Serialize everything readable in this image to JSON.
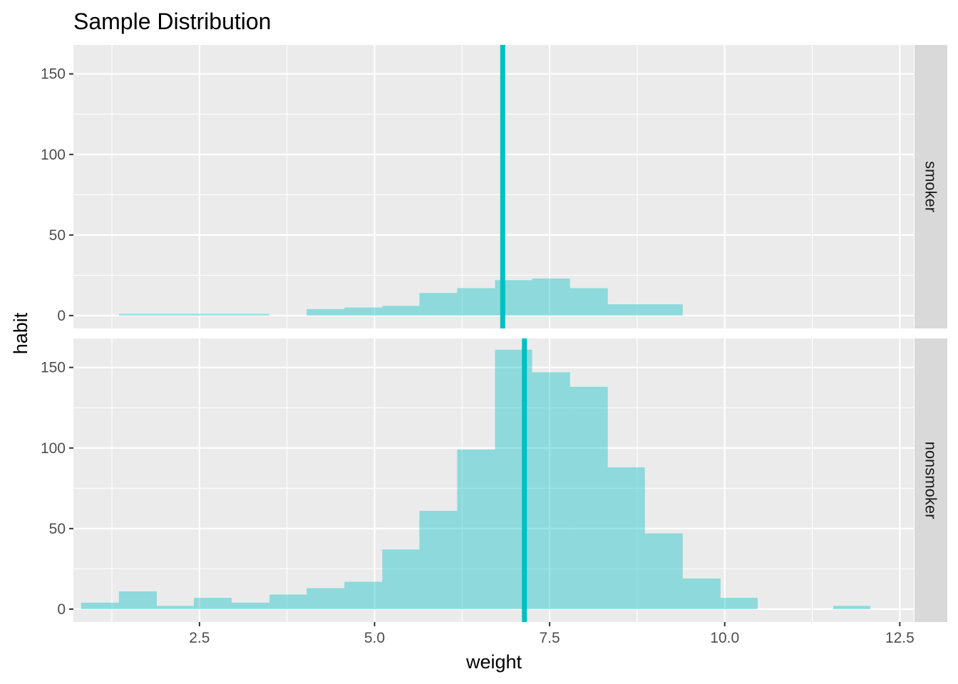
{
  "chart_data": {
    "type": "bar",
    "title": "Sample Distribution",
    "xlabel": "weight",
    "ylabel": "habit",
    "xlim": [
      0.7,
      12.7
    ],
    "ylim": [
      -8,
      168
    ],
    "x_ticks": [
      "2.5",
      "5.0",
      "7.5",
      "10.0",
      "12.5"
    ],
    "y_ticks": [
      "0",
      "50",
      "100",
      "150"
    ],
    "bin_width": 0.537,
    "fill_color": "#00BFC4",
    "fill_opacity": 0.4,
    "mean_line_color": "#00BFC4",
    "panels": [
      {
        "name": "smoker",
        "mean": 6.83,
        "bins": [
          {
            "x0": 0.81,
            "x1": 1.35,
            "count": 0
          },
          {
            "x0": 1.35,
            "x1": 1.89,
            "count": 1
          },
          {
            "x0": 1.89,
            "x1": 2.42,
            "count": 1
          },
          {
            "x0": 2.42,
            "x1": 2.96,
            "count": 1
          },
          {
            "x0": 2.96,
            "x1": 3.5,
            "count": 1
          },
          {
            "x0": 3.5,
            "x1": 4.03,
            "count": 0
          },
          {
            "x0": 4.03,
            "x1": 4.57,
            "count": 4
          },
          {
            "x0": 4.57,
            "x1": 5.11,
            "count": 5
          },
          {
            "x0": 5.11,
            "x1": 5.64,
            "count": 6
          },
          {
            "x0": 5.64,
            "x1": 6.18,
            "count": 14
          },
          {
            "x0": 6.18,
            "x1": 6.72,
            "count": 17
          },
          {
            "x0": 6.72,
            "x1": 7.25,
            "count": 22
          },
          {
            "x0": 7.25,
            "x1": 7.79,
            "count": 23
          },
          {
            "x0": 7.79,
            "x1": 8.33,
            "count": 17
          },
          {
            "x0": 8.33,
            "x1": 8.86,
            "count": 7
          },
          {
            "x0": 8.86,
            "x1": 9.4,
            "count": 7
          },
          {
            "x0": 9.4,
            "x1": 9.94,
            "count": 0
          },
          {
            "x0": 9.94,
            "x1": 10.47,
            "count": 0
          },
          {
            "x0": 10.47,
            "x1": 11.01,
            "count": 0
          },
          {
            "x0": 11.01,
            "x1": 11.55,
            "count": 0
          },
          {
            "x0": 11.55,
            "x1": 12.08,
            "count": 0
          }
        ]
      },
      {
        "name": "nonsmoker",
        "mean": 7.14,
        "bins": [
          {
            "x0": 0.81,
            "x1": 1.35,
            "count": 4
          },
          {
            "x0": 1.35,
            "x1": 1.89,
            "count": 11
          },
          {
            "x0": 1.89,
            "x1": 2.42,
            "count": 2
          },
          {
            "x0": 2.42,
            "x1": 2.96,
            "count": 7
          },
          {
            "x0": 2.96,
            "x1": 3.5,
            "count": 4
          },
          {
            "x0": 3.5,
            "x1": 4.03,
            "count": 9
          },
          {
            "x0": 4.03,
            "x1": 4.57,
            "count": 13
          },
          {
            "x0": 4.57,
            "x1": 5.11,
            "count": 17
          },
          {
            "x0": 5.11,
            "x1": 5.64,
            "count": 37
          },
          {
            "x0": 5.64,
            "x1": 6.18,
            "count": 61
          },
          {
            "x0": 6.18,
            "x1": 6.72,
            "count": 99
          },
          {
            "x0": 6.72,
            "x1": 7.25,
            "count": 161
          },
          {
            "x0": 7.25,
            "x1": 7.79,
            "count": 147
          },
          {
            "x0": 7.79,
            "x1": 8.33,
            "count": 138
          },
          {
            "x0": 8.33,
            "x1": 8.86,
            "count": 88
          },
          {
            "x0": 8.86,
            "x1": 9.4,
            "count": 47
          },
          {
            "x0": 9.4,
            "x1": 9.94,
            "count": 19
          },
          {
            "x0": 9.94,
            "x1": 10.47,
            "count": 7
          },
          {
            "x0": 10.47,
            "x1": 11.01,
            "count": 0
          },
          {
            "x0": 11.01,
            "x1": 11.55,
            "count": 0
          },
          {
            "x0": 11.55,
            "x1": 12.08,
            "count": 2
          }
        ]
      }
    ],
    "grid": true,
    "legend": "none"
  }
}
